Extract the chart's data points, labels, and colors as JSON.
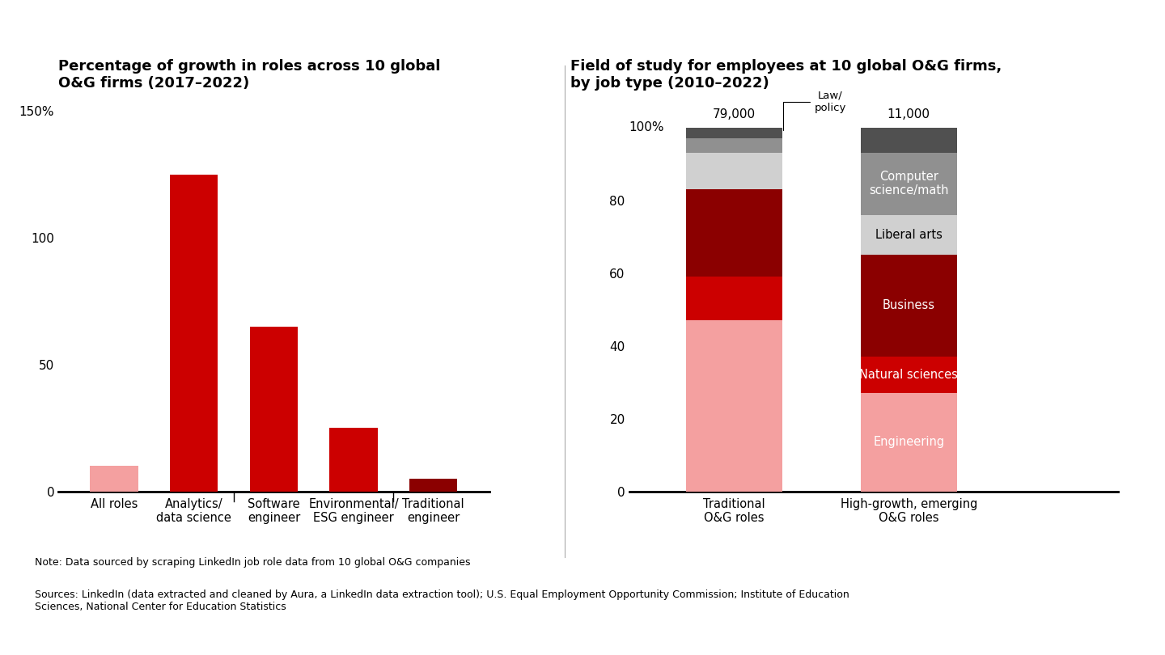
{
  "left_title": "Percentage of growth in roles across 10 global\nO&G firms (2017–2022)",
  "left_categories": [
    "All roles",
    "Analytics/\ndata science",
    "Software\nengineer",
    "Environmental/\nESG engineer",
    "Traditional\nengineer"
  ],
  "left_values": [
    10,
    125,
    65,
    25,
    5
  ],
  "left_colors": [
    "#F4A0A0",
    "#CC0000",
    "#CC0000",
    "#CC0000",
    "#8B0000"
  ],
  "left_yticks": [
    0,
    50,
    100,
    150
  ],
  "left_ylim": [
    0,
    155
  ],
  "left_tick_labels": [
    "0",
    "50",
    "100",
    "150%"
  ],
  "right_title": "Field of study for employees at 10 global O&G firms,\nby job type (2010–2022)",
  "right_categories": [
    "Traditional\nO&G roles",
    "High-growth, emerging\nO&G roles"
  ],
  "right_totals": [
    "79,000",
    "11,000"
  ],
  "right_trad": [
    47,
    12,
    24,
    10,
    4,
    3
  ],
  "right_high": [
    27,
    10,
    28,
    11,
    17,
    7
  ],
  "right_colors": [
    "#F4A0A0",
    "#CC0000",
    "#8B0000",
    "#D0D0D0",
    "#909090",
    "#505050"
  ],
  "right_yticks": [
    0,
    20,
    40,
    60,
    80
  ],
  "right_ylim": [
    0,
    108
  ],
  "note": "Note: Data sourced by scraping LinkedIn job role data from 10 global O&G companies",
  "source": "Sources: LinkedIn (data extracted and cleaned by Aura, a LinkedIn data extraction tool); U.S. Equal Employment Opportunity Commission; Institute of Education\nSciences, National Center for Education Statistics",
  "bg_color": "#FFFFFF"
}
